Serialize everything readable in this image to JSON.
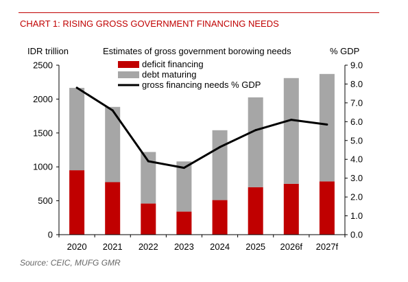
{
  "header": {
    "title": "CHART 1: RISING GROSS GOVERNMENT FINANCING NEEDS"
  },
  "footer": {
    "source": "Source: CEIC, MUFG GMR"
  },
  "chart_data": {
    "type": "bar",
    "stacked": true,
    "title": "Estimates of gross government borowing needs",
    "ylabel_left": "IDR trillion",
    "ylabel_right": "% GDP",
    "categories": [
      "2020",
      "2021",
      "2022",
      "2023",
      "2024",
      "2025",
      "2026f",
      "2027f"
    ],
    "series": [
      {
        "name": "deficit financing",
        "type": "bar",
        "axis": "left",
        "color": "#c00000",
        "values": [
          950,
          775,
          460,
          340,
          510,
          700,
          750,
          785
        ]
      },
      {
        "name": "debt maturing",
        "type": "bar",
        "axis": "left",
        "color": "#a6a6a6",
        "values": [
          1215,
          1110,
          760,
          740,
          1030,
          1325,
          1560,
          1585
        ]
      },
      {
        "name": "gross financing needs % GDP",
        "type": "line",
        "axis": "right",
        "color": "#000000",
        "values": [
          7.8,
          6.6,
          3.9,
          3.55,
          4.65,
          5.55,
          6.1,
          5.85
        ]
      }
    ],
    "ylim_left": [
      0,
      2500
    ],
    "yticks_left": [
      "0",
      "500",
      "1000",
      "1500",
      "2000",
      "2500"
    ],
    "ylim_right": [
      0,
      9
    ],
    "yticks_right": [
      "0.0",
      "1.0",
      "2.0",
      "3.0",
      "4.0",
      "5.0",
      "6.0",
      "7.0",
      "8.0",
      "9.0"
    ],
    "grid": false,
    "legend_position": "top-left"
  }
}
